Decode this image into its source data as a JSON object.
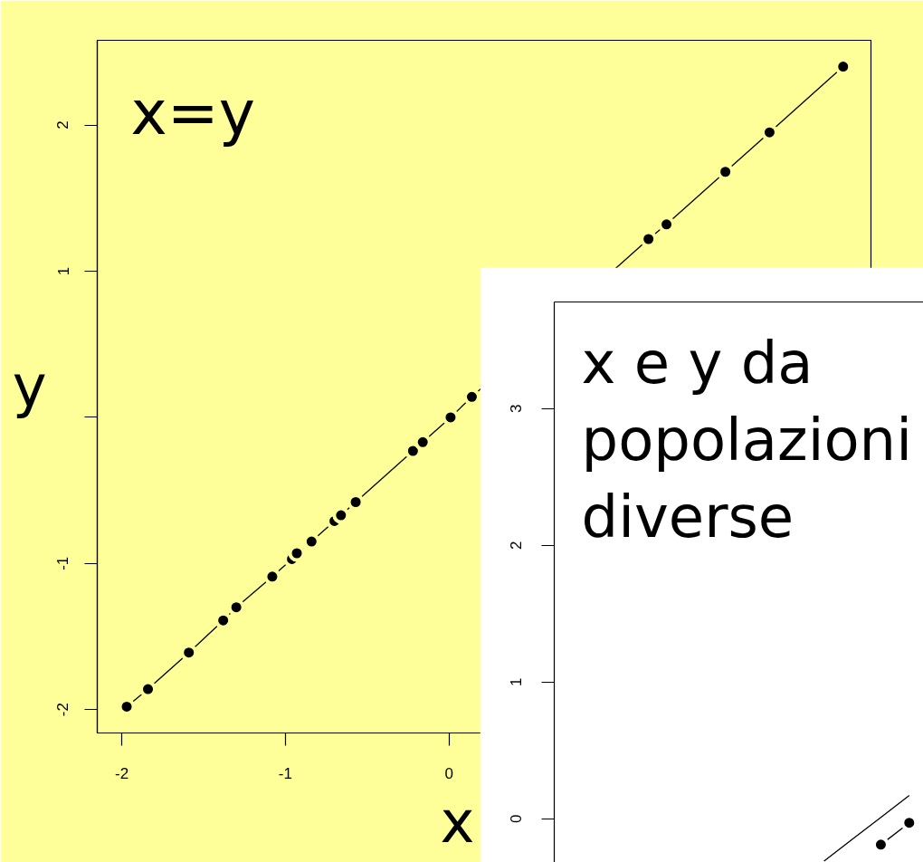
{
  "chart_data": [
    {
      "type": "line",
      "annotations": [
        "x=y"
      ],
      "xlabel": "x",
      "ylabel": "y",
      "color": "#000000",
      "marker": "circle",
      "grid": false,
      "x": [
        -1.97,
        -1.84,
        -1.59,
        -1.38,
        -1.3,
        -1.08,
        -0.96,
        -0.93,
        -0.85,
        -0.84,
        -0.7,
        -0.66,
        -0.57,
        -0.22,
        -0.16,
        0.01,
        0.14,
        1.22,
        1.33,
        1.69,
        1.96,
        2.41
      ],
      "values": [
        -1.98,
        -1.86,
        -1.61,
        -1.39,
        -1.3,
        -1.09,
        -0.97,
        -0.93,
        -0.86,
        -0.85,
        -0.71,
        -0.67,
        -0.58,
        -0.23,
        -0.17,
        0.0,
        0.14,
        1.22,
        1.32,
        1.68,
        1.95,
        2.4
      ],
      "xlim": [
        -2.15,
        2.58
      ],
      "ylim": [
        -2.16,
        2.58
      ],
      "xticks": [
        -2,
        -1,
        0
      ],
      "yticks": [
        -2,
        -1,
        {
          "value": 0,
          "label": null
        },
        1,
        2
      ]
    },
    {
      "type": "line",
      "annotations": [
        "x e y da popolazioni diverse"
      ],
      "grid": false,
      "tick_labels": "y",
      "categories": [
        null,
        null,
        null,
        null,
        null,
        null,
        null,
        null,
        null,
        null,
        null,
        null,
        null
      ],
      "series": [
        {
          "color": "#000000",
          "marker": "none",
          "values": [
            null,
            null,
            null,
            null,
            null,
            null,
            null,
            null,
            null,
            -0.31,
            -0.15,
            0.01,
            0.17
          ]
        },
        {
          "color": "#000000",
          "marker": "circle",
          "values": [
            null,
            null,
            null,
            null,
            null,
            null,
            null,
            null,
            null,
            null,
            null,
            -0.19,
            -0.03
          ]
        }
      ],
      "ylim": [
        -0.32,
        3.78
      ],
      "yticks": [
        0,
        1,
        2,
        3
      ]
    }
  ]
}
